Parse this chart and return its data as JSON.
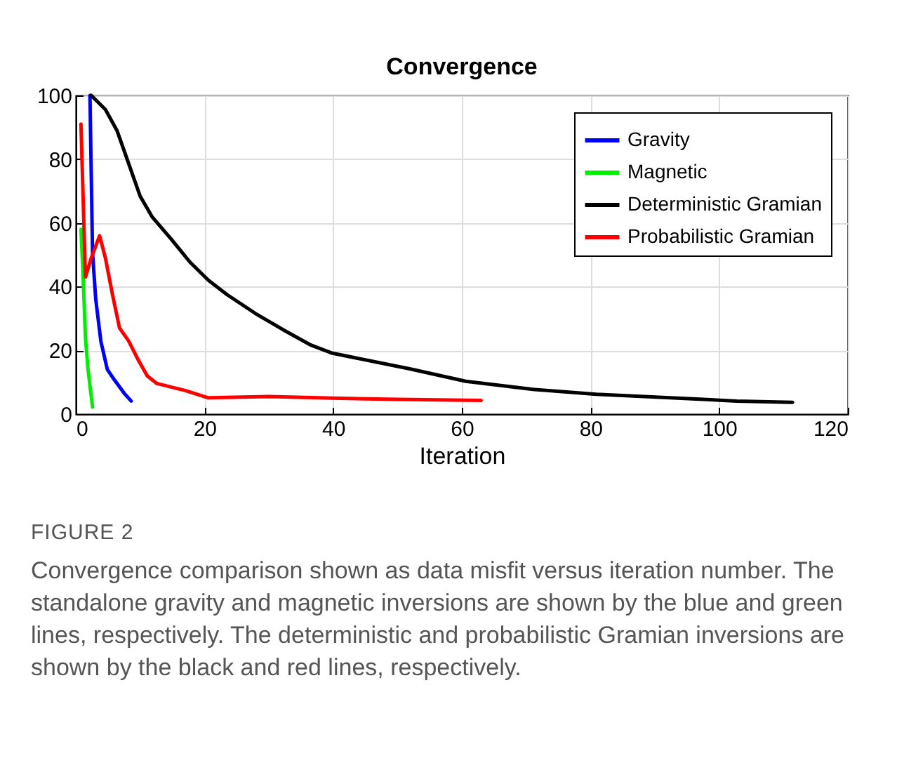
{
  "chart_data": {
    "type": "line",
    "title": "Convergence",
    "xlabel": "Iteration",
    "xlim": [
      0,
      120
    ],
    "xticks": [
      0,
      20,
      40,
      60,
      80,
      100,
      120
    ],
    "ylim": [
      0,
      100
    ],
    "yticks": [
      0,
      20,
      40,
      60,
      80,
      100
    ],
    "grid": true,
    "legend": "top right",
    "line_style": "solid",
    "marker": "none",
    "series": [
      {
        "name": "Gravity",
        "color": "#0000ff",
        "x": [
          2.2,
          2.6,
          3.1,
          3.9,
          4.9,
          5.9,
          7.5,
          8.6
        ],
        "values": [
          100,
          50.7,
          36,
          22.8,
          14,
          11,
          6.6,
          4.1
        ]
      },
      {
        "name": "Magnetic",
        "color": "#00ee00",
        "x": [
          0.8,
          1.1,
          1.5,
          1.9,
          2.6
        ],
        "values": [
          58,
          45,
          24,
          14,
          2.2
        ]
      },
      {
        "name": "Deterministic Gramian",
        "color": "#000000",
        "x": [
          2.4,
          4.6,
          6.4,
          8.2,
          10,
          11.9,
          14.8,
          17.7,
          20.6,
          23.5,
          27.9,
          32.2,
          36.6,
          39.9,
          51.9,
          60.6,
          70.8,
          80.9,
          91.8,
          102.7,
          111.4
        ],
        "values": [
          100,
          95.6,
          89,
          78.7,
          68.4,
          61.8,
          55,
          47.8,
          42,
          37.5,
          31.6,
          26.5,
          21.6,
          19.1,
          14.2,
          10.3,
          7.8,
          6.2,
          5.2,
          4.1,
          3.7
        ]
      },
      {
        "name": "Probabilistic Gramian",
        "color": "#ff0000",
        "x": [
          0.8,
          1.5,
          2.4,
          3.7,
          4.6,
          5.7,
          6.8,
          8.2,
          9.7,
          11.1,
          12.6,
          17,
          20.6,
          30,
          40,
          50,
          63
        ],
        "values": [
          91,
          43,
          49,
          56,
          49,
          37.5,
          27,
          23,
          17,
          12,
          9.6,
          7.4,
          5.1,
          5.5,
          5,
          4.6,
          4.3
        ]
      }
    ],
    "annotations": [
      "FIGURE 2",
      "Convergence comparison shown as data misfit versus iteration number. The standalone gravity and magnetic inversions are shown by the blue and green lines, respectively. The deterministic and probabilistic Gramian inversions are shown by the black and red lines, respectively."
    ]
  }
}
